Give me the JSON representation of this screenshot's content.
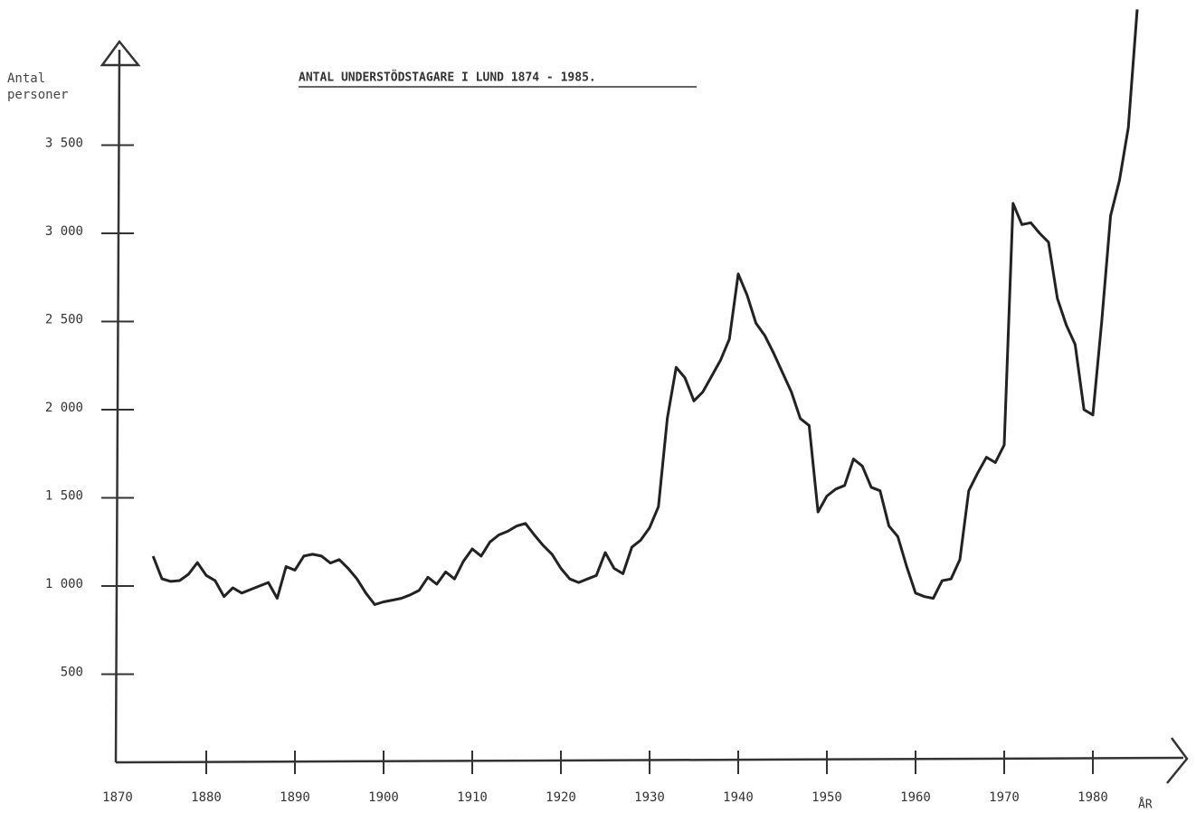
{
  "chart_data": {
    "type": "line",
    "title": "ANTAL UNDERSTÖDSTAGARE I LUND 1874 - 1985.",
    "y_label": "Antal personer",
    "x_label": "ÅR",
    "xlim": [
      1870,
      1990
    ],
    "xticks": [
      1870,
      1880,
      1890,
      1900,
      1910,
      1920,
      1930,
      1940,
      1950,
      1960,
      1970,
      1980
    ],
    "ylim": [
      0,
      4300
    ],
    "yticks": [
      500,
      {
        "value": 1000,
        "label": "1 000"
      },
      {
        "value": 1500,
        "label": "1 500"
      },
      {
        "value": 2000,
        "label": "2 000"
      },
      {
        "value": 2500,
        "label": "2 500"
      },
      {
        "value": 3000,
        "label": "3 000"
      },
      {
        "value": 3500,
        "label": "3 500"
      }
    ],
    "color": "#222222",
    "x": [
      1874,
      1875,
      1876,
      1877,
      1878,
      1879,
      1880,
      1881,
      1882,
      1883,
      1884,
      1885,
      1886,
      1887,
      1888,
      1889,
      1890,
      1891,
      1892,
      1893,
      1894,
      1895,
      1896,
      1897,
      1898,
      1899,
      1900,
      1901,
      1902,
      1903,
      1904,
      1905,
      1906,
      1907,
      1908,
      1909,
      1910,
      1911,
      1912,
      1913,
      1914,
      1915,
      1916,
      1917,
      1918,
      1919,
      1920,
      1921,
      1922,
      1923,
      1924,
      1925,
      1926,
      1927,
      1928,
      1929,
      1930,
      1931,
      1932,
      1933,
      1934,
      1935,
      1936,
      1937,
      1938,
      1939,
      1940,
      1941,
      1942,
      1943,
      1944,
      1945,
      1946,
      1947,
      1948,
      1949,
      1950,
      1951,
      1952,
      1953,
      1954,
      1955,
      1956,
      1957,
      1958,
      1959,
      1960,
      1961,
      1962,
      1963,
      1964,
      1965,
      1966,
      1967,
      1968,
      1969,
      1970,
      1971,
      1972,
      1973,
      1974,
      1975,
      1976,
      1977,
      1978,
      1979,
      1980,
      1981,
      1982,
      1983,
      1984,
      1985
    ],
    "values": [
      1169,
      1041,
      1026,
      1031,
      1067,
      1133,
      1060,
      1030,
      940,
      990,
      960,
      980,
      1000,
      1020,
      930,
      1110,
      1090,
      1170,
      1180,
      1170,
      1130,
      1150,
      1100,
      1040,
      960,
      895,
      910,
      920,
      930,
      950,
      975,
      1050,
      1010,
      1080,
      1040,
      1140,
      1210,
      1170,
      1250,
      1290,
      1310,
      1340,
      1355,
      1290,
      1230,
      1180,
      1100,
      1040,
      1020,
      1040,
      1060,
      1190,
      1100,
      1070,
      1220,
      1260,
      1330,
      1450,
      1950,
      2240,
      2180,
      2050,
      2100,
      2190,
      2280,
      2400,
      2770,
      2650,
      2490,
      2420,
      2320,
      2210,
      2100,
      1950,
      1910,
      1420,
      1510,
      1550,
      1570,
      1720,
      1680,
      1560,
      1540,
      1340,
      1280,
      1110,
      960,
      940,
      930,
      1030,
      1040,
      1150,
      1540,
      1640,
      1730,
      1700,
      1800,
      3170,
      3050,
      3060,
      3000,
      2950,
      2630,
      2480,
      2370,
      2000,
      1970,
      2500,
      3100,
      3300,
      3600,
      4270
    ]
  }
}
